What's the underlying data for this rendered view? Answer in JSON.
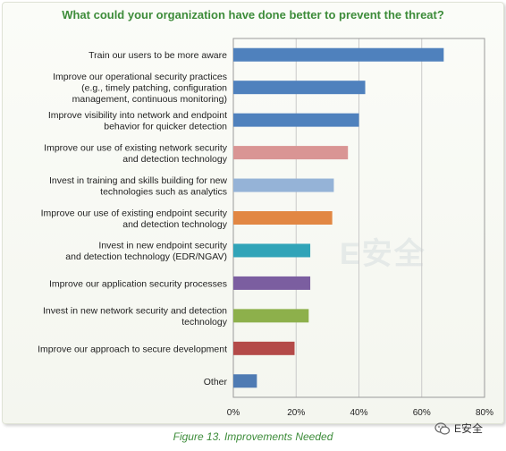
{
  "chart_data": {
    "type": "bar",
    "orientation": "horizontal",
    "title": "What could your organization have done better to prevent the threat?",
    "categories": [
      [
        "Train our users to be more aware"
      ],
      [
        "Improve our operational security practices",
        "(e.g., timely patching, configuration",
        "management, continuous monitoring)"
      ],
      [
        "Improve visibility into network and endpoint",
        "behavior for quicker detection"
      ],
      [
        "Improve our use of existing network security",
        "and detection technology"
      ],
      [
        "Invest in training and skills building for new",
        "technologies such as analytics"
      ],
      [
        "Improve our use of existing endpoint security",
        "and detection technology"
      ],
      [
        "Invest in new endpoint security",
        "and detection technology (EDR/NGAV)"
      ],
      [
        "Improve our application security processes"
      ],
      [
        "Invest in new network security and detection",
        "technology"
      ],
      [
        "Improve our approach to secure development"
      ],
      [
        "Other"
      ]
    ],
    "values": [
      67,
      42,
      40,
      36.5,
      32,
      31.5,
      24.5,
      24.5,
      24,
      19.5,
      7.5
    ],
    "bar_colors": [
      "#4f81bd",
      "#4f81bd",
      "#4f81bd",
      "#d99594",
      "#95b3d7",
      "#e28743",
      "#31a4b8",
      "#7b5ea0",
      "#8db04b",
      "#b44a48",
      "#4f7bb3"
    ],
    "xlim": [
      0,
      80
    ],
    "xticks": [
      "0%",
      "20%",
      "40%",
      "60%",
      "80%"
    ],
    "grid": true
  },
  "caption": "Figure 13. Improvements Needed",
  "watermark": "E安全",
  "badge_text": "E安全"
}
